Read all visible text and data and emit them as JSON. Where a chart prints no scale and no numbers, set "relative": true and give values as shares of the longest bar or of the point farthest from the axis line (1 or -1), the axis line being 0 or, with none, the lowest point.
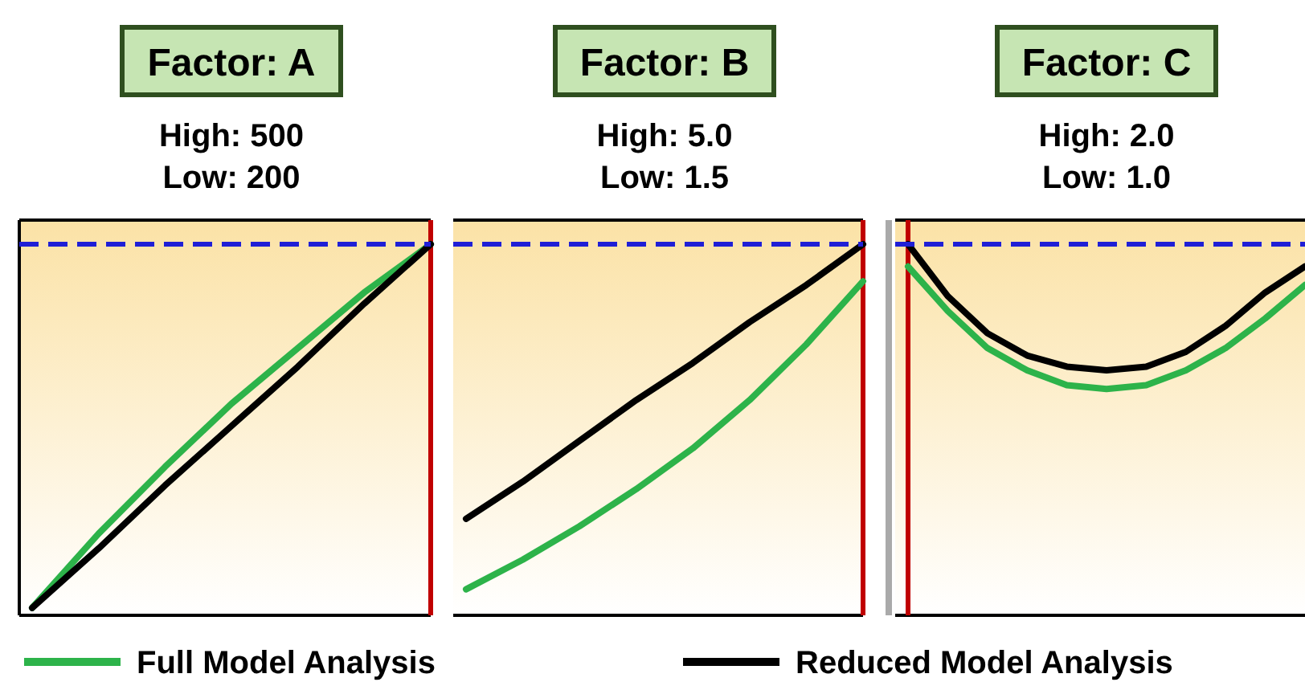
{
  "chart_data": [
    {
      "type": "line",
      "title": "Factor: A",
      "subtitle": "High: 500\nLow: 200",
      "relative": true,
      "categories": [
        null,
        null,
        null,
        null,
        null,
        null,
        null
      ],
      "legend": "bottom",
      "series": [
        {
          "name": "Full Model Analysis",
          "color": "#2db34a",
          "values": [
            0.02,
            0.22,
            0.4,
            0.57,
            0.72,
            0.87,
            1.0
          ]
        },
        {
          "name": "Reduced Model Analysis",
          "color": "#000000",
          "values": [
            0.02,
            0.18,
            0.35,
            0.51,
            0.67,
            0.84,
            1.0
          ]
        }
      ],
      "ref_lines": [
        {
          "axis": "y",
          "value": 1,
          "color": "#1f1fd6",
          "line_style": "dashed"
        }
      ]
    },
    {
      "type": "line",
      "title": "Factor: B",
      "subtitle": "High: 5.0\nLow: 1.5",
      "relative": true,
      "categories": [
        null,
        null,
        null,
        null,
        null,
        null,
        null,
        null
      ],
      "series": [
        {
          "color": "#2db34a",
          "values": [
            0.07,
            0.15,
            0.24,
            0.34,
            0.45,
            0.58,
            0.73,
            0.9
          ]
        },
        {
          "color": "#000000",
          "values": [
            0.26,
            0.36,
            0.47,
            0.58,
            0.68,
            0.79,
            0.89,
            1.0
          ]
        }
      ],
      "ref_lines": [
        {
          "axis": "y",
          "value": 1,
          "color": "#1f1fd6",
          "line_style": "dashed"
        }
      ]
    },
    {
      "type": "line",
      "title": "Factor: C",
      "subtitle": "High: 2.0\nLow: 1.0",
      "relative": true,
      "categories": [
        null,
        null,
        null,
        null,
        null,
        null,
        null,
        null,
        null,
        null,
        null
      ],
      "series": [
        {
          "color": "#2db34a",
          "values": [
            0.94,
            0.82,
            0.72,
            0.66,
            0.62,
            0.61,
            0.62,
            0.66,
            0.72,
            0.8,
            0.89
          ]
        },
        {
          "color": "#000000",
          "values": [
            1.0,
            0.86,
            0.76,
            0.7,
            0.67,
            0.66,
            0.67,
            0.71,
            0.78,
            0.87,
            0.94
          ]
        }
      ],
      "ref_lines": [
        {
          "axis": "y",
          "value": 1,
          "color": "#1f1fd6",
          "line_style": "dashed"
        }
      ]
    }
  ]
}
